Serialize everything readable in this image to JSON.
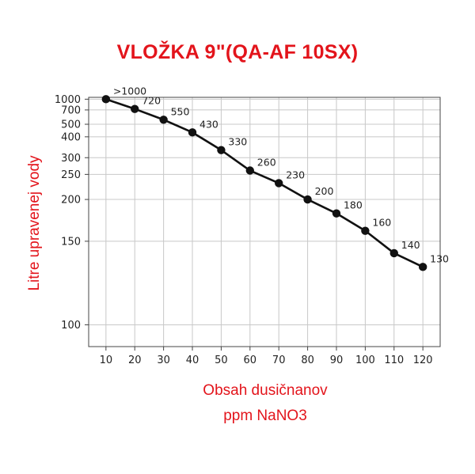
{
  "chart_data": {
    "type": "line",
    "title": "VLOŽKA 9\"(QA-AF 10SX)",
    "ylabel": "Litre  upravenej  vody",
    "xlabel": "Obsah dusičnanov",
    "xlabel_line2": "ppm NaNO3",
    "x": [
      10,
      20,
      30,
      40,
      50,
      60,
      70,
      80,
      90,
      100,
      110,
      120
    ],
    "y": [
      1000,
      720,
      550,
      430,
      330,
      260,
      230,
      200,
      180,
      160,
      140,
      130
    ],
    "data_labels": [
      ">1000",
      "720",
      "550",
      "430",
      "330",
      "260",
      "230",
      "200",
      "180",
      "160",
      "140",
      "130"
    ],
    "x_ticks": [
      "10",
      "20",
      "30",
      "40",
      "50",
      "60",
      "70",
      "80",
      "90",
      "100",
      "110",
      "120"
    ],
    "y_ticks": [
      "1000",
      "700",
      "500",
      "400",
      "300",
      "250",
      "200",
      "150",
      "100"
    ],
    "y_scale": "reciprocal",
    "xlim": [
      10,
      120
    ],
    "ylim": [
      100,
      1000
    ],
    "grid": true,
    "colors": {
      "title": "#e3141b",
      "line": "#111111",
      "grid": "#c8c8c8"
    }
  }
}
